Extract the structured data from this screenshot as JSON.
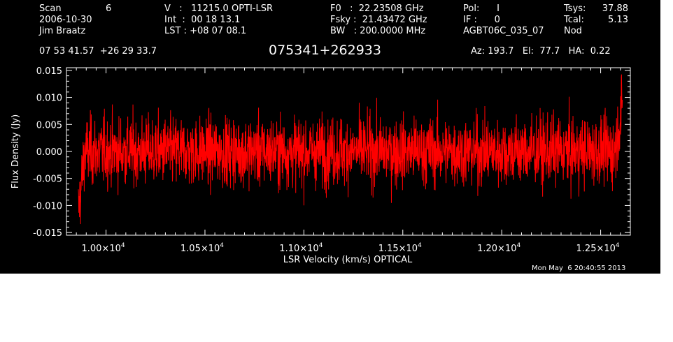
{
  "header": {
    "scan_label": "Scan",
    "scan_number": "6",
    "date": "2006-10-30",
    "observer": "Jim Braatz",
    "velocity": "V   :   11215.0 OPTI-LSR",
    "integration": "Int  :  00 18 13.1",
    "lst": "LST : +08 07 08.1",
    "f0": "F0   :  22.23508 GHz",
    "fsky": "Fsky :  21.43472 GHz",
    "bw": "BW   : 200.0000 MHz",
    "pol": "Pol:      I",
    "if": "IF :      0",
    "project": "AGBT06C_035_07",
    "tsys_label": "Tsys:",
    "tsys_value": "37.88",
    "tcal_label": "Tcal:",
    "tcal_value": "5.13",
    "nod": "Nod",
    "coords": "07 53 41.57  +26 29 33.7",
    "source": "075341+262933",
    "az_el_ha": "Az: 193.7   El:  77.7   HA:  0.22",
    "timestamp": "Mon May  6 20:40:55 2013"
  },
  "colors": {
    "background": "#000000",
    "axes": "#ffffff",
    "trace": "#ff0000"
  },
  "chart_data": {
    "type": "line",
    "xlabel": "LSR Velocity (km/s) OPTICAL",
    "ylabel": "Flux Density (Jy)",
    "xlim": [
      9800,
      12650
    ],
    "ylim": [
      -0.0155,
      0.0155
    ],
    "x_ticks": [
      10000,
      10500,
      11000,
      11500,
      12000,
      12500
    ],
    "x_tick_labels": [
      {
        "mantissa": "1.00×10",
        "exp": "4"
      },
      {
        "mantissa": "1.05×10",
        "exp": "4"
      },
      {
        "mantissa": "1.10×10",
        "exp": "4"
      },
      {
        "mantissa": "1.15×10",
        "exp": "4"
      },
      {
        "mantissa": "1.20×10",
        "exp": "4"
      },
      {
        "mantissa": "1.25×10",
        "exp": "4"
      }
    ],
    "y_ticks": [
      -0.015,
      -0.01,
      -0.005,
      0.0,
      0.005,
      0.01,
      0.015
    ],
    "y_tick_labels": [
      "-0.015",
      "-0.010",
      "-0.005",
      "0.000",
      "0.005",
      "0.010",
      "0.015"
    ],
    "series": [
      {
        "color": "#ff0000",
        "x_start": 9860,
        "x_end": 12610,
        "noise_rms": 0.0035,
        "mean": 0.0,
        "edge_values": {
          "start": -0.014,
          "end": 0.01
        }
      }
    ]
  }
}
